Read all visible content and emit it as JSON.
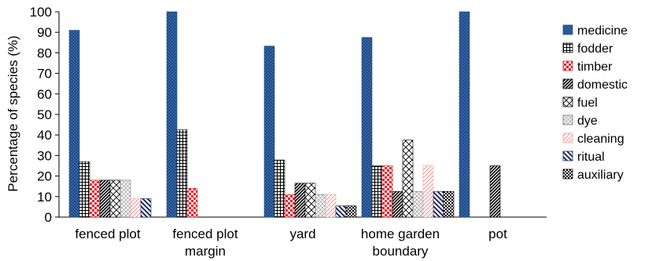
{
  "chart_data": {
    "type": "bar",
    "title": "",
    "xlabel": "",
    "ylabel": "Percentage of species (%)",
    "ylim": [
      0,
      100
    ],
    "yticks": [
      "0",
      "10",
      "20",
      "30",
      "40",
      "50",
      "60",
      "70",
      "80",
      "90",
      "100"
    ],
    "categories": [
      [
        "fenced plot"
      ],
      [
        "fenced plot",
        "margin"
      ],
      [
        "yard"
      ],
      [
        "home garden",
        "boundary"
      ],
      [
        "pot"
      ]
    ],
    "legend_position": "right",
    "grid": false,
    "series": [
      {
        "name": "medicine",
        "pattern": "medicine",
        "color": "#1f4e8c",
        "values": [
          91,
          100,
          83.3,
          87.5,
          100
        ]
      },
      {
        "name": "fodder",
        "pattern": "fodder",
        "color": "#000000",
        "values": [
          27,
          42.5,
          27.8,
          25,
          0
        ]
      },
      {
        "name": "timber",
        "pattern": "timber",
        "color": "#e8202a",
        "values": [
          18,
          14,
          11,
          25,
          0
        ]
      },
      {
        "name": "domestic",
        "pattern": "domestic",
        "color": "#000000",
        "values": [
          18,
          0,
          16.5,
          12.5,
          25
        ]
      },
      {
        "name": "fuel",
        "pattern": "fuel",
        "color": "#000000",
        "values": [
          18,
          0,
          16.5,
          37.5,
          0
        ]
      },
      {
        "name": "dye",
        "pattern": "dye",
        "color": "#777777",
        "values": [
          18,
          0,
          11,
          12.5,
          0
        ]
      },
      {
        "name": "cleaning",
        "pattern": "cleaning",
        "color": "#f4a0a0",
        "values": [
          9,
          0,
          11,
          25,
          0
        ]
      },
      {
        "name": "ritual",
        "pattern": "ritual",
        "color": "#1f2a5c",
        "values": [
          9,
          0,
          5.5,
          12.5,
          0
        ]
      },
      {
        "name": "auxiliary",
        "pattern": "auxiliary",
        "color": "#000000",
        "values": [
          0,
          0,
          5.5,
          12.5,
          0
        ]
      }
    ]
  }
}
